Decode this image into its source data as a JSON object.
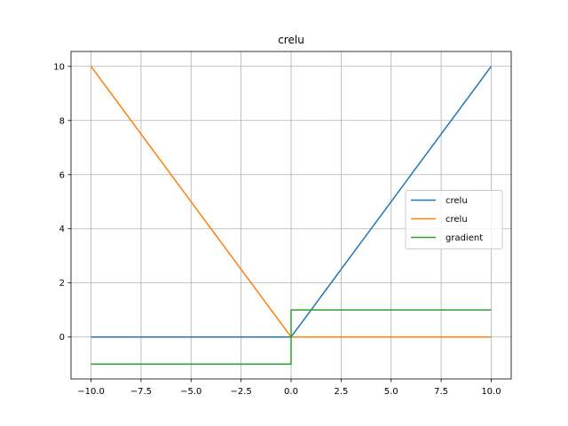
{
  "chart_data": {
    "type": "line",
    "title": "crelu",
    "xlabel": "",
    "ylabel": "",
    "xlim": [
      -11,
      11
    ],
    "ylim": [
      -1.55,
      10.55
    ],
    "grid": true,
    "x_ticks": [
      -10.0,
      -7.5,
      -5.0,
      -2.5,
      0.0,
      2.5,
      5.0,
      7.5,
      10.0
    ],
    "x_tick_labels": [
      "−10.0",
      "−7.5",
      "−5.0",
      "−2.5",
      "0.0",
      "2.5",
      "5.0",
      "7.5",
      "10.0"
    ],
    "y_ticks": [
      0,
      2,
      4,
      6,
      8,
      10
    ],
    "y_tick_labels": [
      "0",
      "2",
      "4",
      "6",
      "8",
      "10"
    ],
    "legend_position": "center-right",
    "series": [
      {
        "name": "crelu",
        "color": "#1f77b4",
        "points": [
          [
            -10,
            0
          ],
          [
            0,
            0
          ],
          [
            10,
            10
          ]
        ]
      },
      {
        "name": "crelu",
        "color": "#ff7f0e",
        "points": [
          [
            -10,
            10
          ],
          [
            0,
            0
          ],
          [
            10,
            0
          ]
        ]
      },
      {
        "name": "gradient",
        "color": "#2ca02c",
        "points": [
          [
            -10,
            -1
          ],
          [
            0,
            -1
          ],
          [
            0,
            1
          ],
          [
            10,
            1
          ]
        ]
      }
    ]
  }
}
